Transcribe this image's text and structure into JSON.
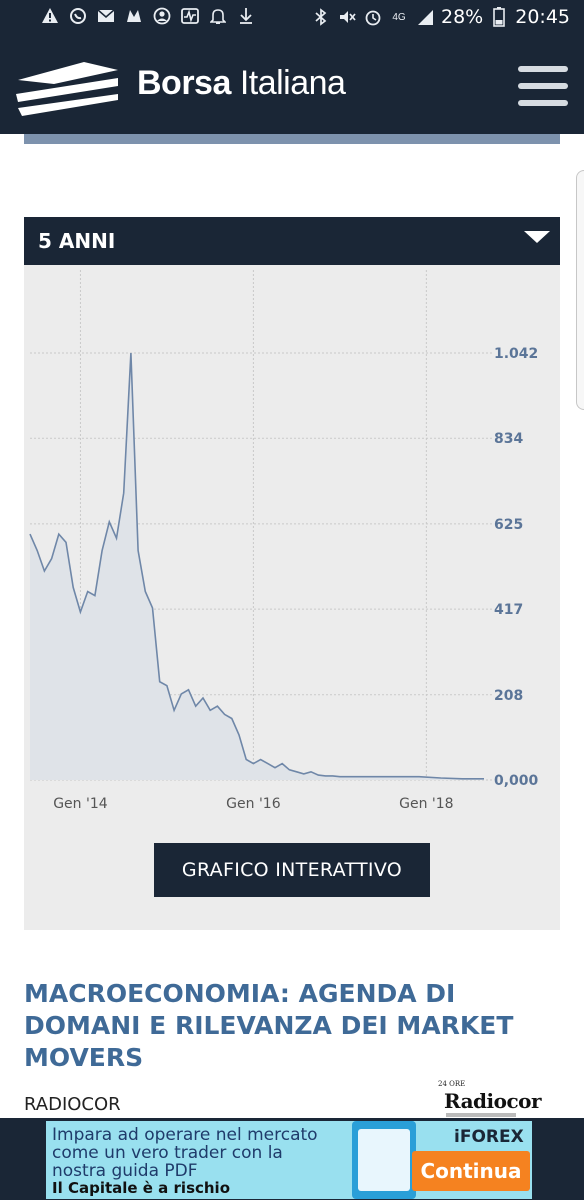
{
  "status_bar": {
    "left_icons": [
      "warning-icon",
      "whatsapp-icon",
      "mail-icon",
      "app-icon",
      "account-icon",
      "activity-icon",
      "bell-icon",
      "download-icon"
    ],
    "right_icons": [
      "bluetooth-icon",
      "mute-icon",
      "alarm-icon",
      "network-icon",
      "signal-icon",
      "battery-icon"
    ],
    "network": "4G",
    "battery": "28%",
    "time": "20:45"
  },
  "header": {
    "brand_bold": "Borsa",
    "brand_light": "Italiana",
    "colors": {
      "background": "#1a2636",
      "band": "#7d92ad"
    }
  },
  "chart_panel": {
    "period_selector": "5 ANNI",
    "button_label": "GRAFICO INTERATTIVO"
  },
  "chart_data": {
    "type": "area",
    "x_axis": {
      "tick_labels": [
        "Gen '14",
        "Gen '16",
        "Gen '18"
      ],
      "range": [
        "2013-06",
        "2018-09"
      ]
    },
    "y_axis": {
      "tick_labels": [
        "1.042",
        "834",
        "625",
        "417",
        "208",
        "0,000"
      ],
      "tick_values": [
        1042,
        834,
        625,
        417,
        208,
        0
      ],
      "range": [
        0,
        1042
      ],
      "position": "right"
    },
    "grid": true,
    "colors": {
      "line": "#6f87a8",
      "fill": "#dfe3e8"
    },
    "series": [
      {
        "x": [
          "2013-06",
          "2013-07",
          "2013-08",
          "2013-09",
          "2013-10",
          "2013-11",
          "2013-12",
          "2014-01",
          "2014-02",
          "2014-03",
          "2014-04",
          "2014-05",
          "2014-06",
          "2014-07",
          "2014-08",
          "2014-09",
          "2014-10",
          "2014-11",
          "2014-12",
          "2015-01",
          "2015-02",
          "2015-03",
          "2015-04",
          "2015-05",
          "2015-06",
          "2015-07",
          "2015-08",
          "2015-09",
          "2015-10",
          "2015-11",
          "2015-12",
          "2016-01",
          "2016-02",
          "2016-03",
          "2016-04",
          "2016-05",
          "2016-06",
          "2016-07",
          "2016-08",
          "2016-09",
          "2016-10",
          "2016-11",
          "2016-12",
          "2017-01",
          "2017-06",
          "2017-12",
          "2018-03",
          "2018-06",
          "2018-09"
        ],
        "y": [
          600,
          560,
          510,
          540,
          600,
          580,
          470,
          410,
          460,
          450,
          560,
          630,
          590,
          700,
          1042,
          560,
          460,
          420,
          240,
          230,
          170,
          210,
          220,
          180,
          200,
          170,
          180,
          160,
          150,
          110,
          50,
          40,
          50,
          40,
          30,
          40,
          25,
          20,
          15,
          20,
          12,
          10,
          10,
          8,
          8,
          8,
          5,
          3,
          3
        ]
      }
    ]
  },
  "article": {
    "headline": "MACROECONOMIA: AGENDA DI DOMANI E RILEVANZA DEI MARKET MOVERS",
    "source": "RADIOCOR",
    "source_logo_small": "24 ORE",
    "source_logo": "Radiocor"
  },
  "ad": {
    "line1": "Impara ad operare nel mercato",
    "line2": "come un vero trader con la",
    "line3": "nostra guida PDF",
    "line4": "Il Capitale è a rischio",
    "brand": "iFOREX",
    "cta": "Continua"
  }
}
